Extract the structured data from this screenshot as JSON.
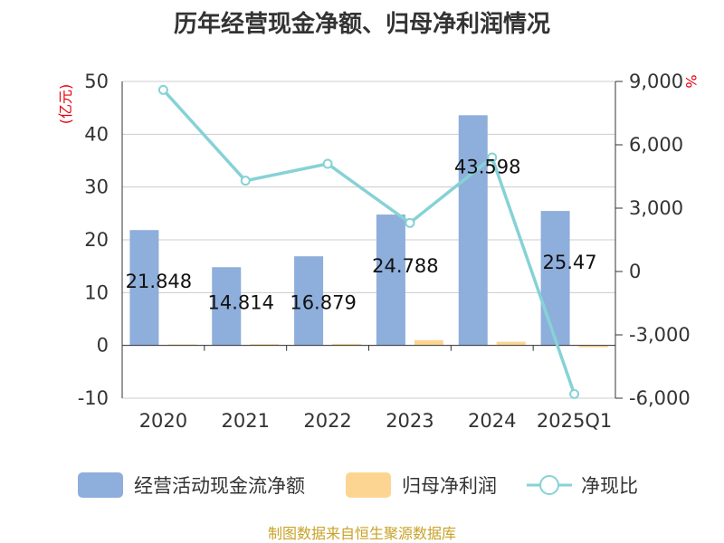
{
  "chart_data": {
    "type": "bar",
    "title": "历年经营现金净额、归母净利润情况",
    "categories": [
      "2020",
      "2021",
      "2022",
      "2023",
      "2024",
      "2025Q1"
    ],
    "left_axis": {
      "unit_label": "(亿元)",
      "ylim": [
        -10,
        50
      ],
      "ticks": [
        "-10",
        "0",
        "10",
        "20",
        "30",
        "40",
        "50"
      ]
    },
    "right_axis": {
      "unit_label": "%",
      "ylim": [
        -6000,
        9000
      ],
      "ticks": [
        "-6,000",
        "-3,000",
        "0",
        "3,000",
        "6,000",
        "9,000"
      ]
    },
    "series": [
      {
        "name": "经营活动现金流净额",
        "kind": "bar",
        "axis": "left",
        "color": "#8eaedb",
        "values": [
          21.848,
          14.814,
          16.879,
          24.788,
          43.598,
          25.47
        ],
        "labels": [
          "21.848",
          "14.814",
          "16.879",
          "24.788",
          "43.598",
          "25.47"
        ]
      },
      {
        "name": "归母净利润",
        "kind": "bar",
        "axis": "left",
        "color": "#fdd593",
        "values": [
          0.2,
          0.25,
          0.3,
          1.0,
          0.7,
          -0.35
        ]
      },
      {
        "name": "净现比",
        "kind": "line",
        "axis": "right",
        "color": "#86d2d6",
        "values": [
          8600,
          4300,
          5100,
          2300,
          5400,
          -5800
        ]
      }
    ],
    "grid": true,
    "legend_position": "bottom",
    "source": "制图数据来自恒生聚源数据库"
  }
}
